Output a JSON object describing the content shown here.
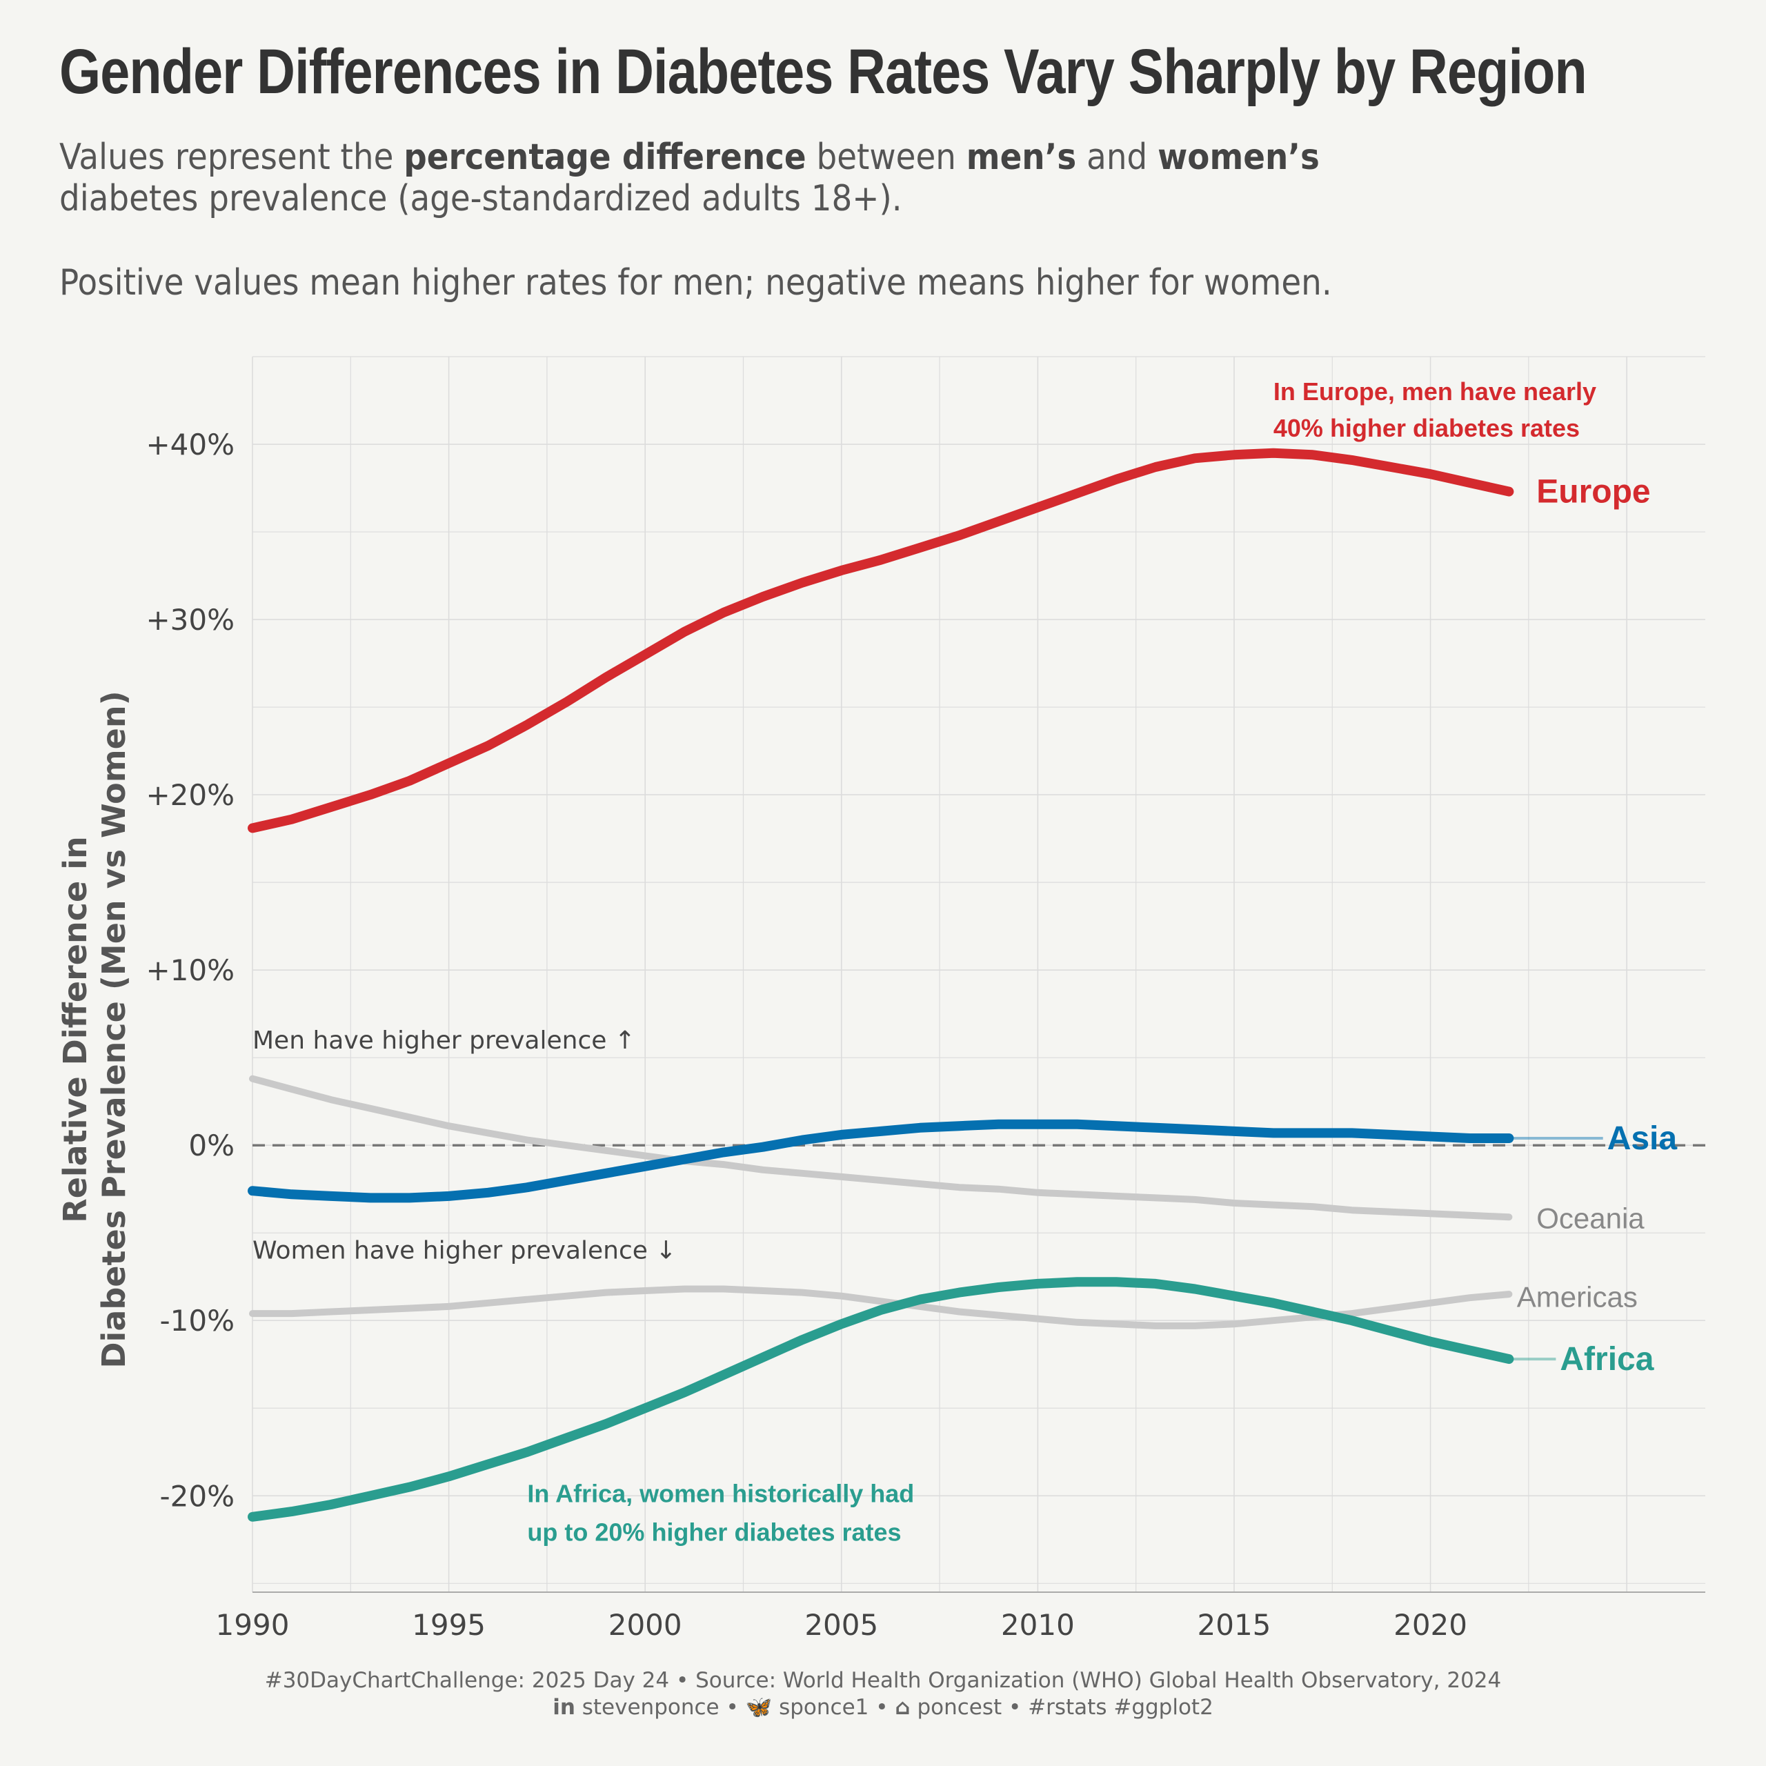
{
  "title": "Gender Differences in Diabetes Rates Vary Sharply by Region",
  "subtitle": {
    "line1_a": "Values represent the ",
    "line1_b": "percentage difference",
    "line1_c": " between ",
    "line1_d": "men’s",
    "line1_e": " and ",
    "line1_f": "women’s",
    "line2": "diabetes prevalence (age-standardized adults 18+).",
    "line3": "Positive values mean higher rates for men; negative means higher for women."
  },
  "caption": {
    "line1": "#30DayChartChallenge: 2025 Day 24 • Source: World Health Organization (WHO) Global Health Observatory, 2024",
    "linkedin": "stevenponce",
    "bluesky": "sponce1",
    "github": "poncest",
    "tags": "#rstats #ggplot2",
    "sep": " • "
  },
  "colors": {
    "background": "#f5f5f2",
    "europe": "#d42a2e",
    "asia": "#0570b0",
    "africa": "#2a9d8f",
    "other": "#c9c9c9",
    "grid": "#dcdcdc",
    "zero_line": "#777777"
  },
  "chart_data": {
    "type": "line",
    "xlim": [
      1990,
      2027
    ],
    "ylim": [
      -25.5,
      45
    ],
    "x_ticks": [
      1990,
      1995,
      2000,
      2005,
      2010,
      2015,
      2020
    ],
    "y_ticks": [
      -20,
      -10,
      0,
      10,
      20,
      30,
      40
    ],
    "y_tick_labels": [
      "-20%",
      "-10%",
      "0%",
      "+10%",
      "+20%",
      "+30%",
      "+40%"
    ],
    "ylabel_line1": "Relative Difference in",
    "ylabel_line2": "Diabetes Prevalence (Men vs Women)",
    "xlabel": "",
    "grid": true,
    "reference_line": 0,
    "series": [
      {
        "name": "Europe",
        "color_key": "europe",
        "highlight": true,
        "x": [
          1990,
          1991,
          1992,
          1993,
          1994,
          1995,
          1996,
          1997,
          1998,
          1999,
          2000,
          2001,
          2002,
          2003,
          2004,
          2005,
          2006,
          2007,
          2008,
          2009,
          2010,
          2011,
          2012,
          2013,
          2014,
          2015,
          2016,
          2017,
          2018,
          2019,
          2020,
          2021,
          2022
        ],
        "values": [
          18.1,
          18.6,
          19.3,
          20.0,
          20.8,
          21.8,
          22.8,
          24.0,
          25.3,
          26.7,
          28.0,
          29.3,
          30.4,
          31.3,
          32.1,
          32.8,
          33.4,
          34.1,
          34.8,
          35.6,
          36.4,
          37.2,
          38.0,
          38.7,
          39.2,
          39.4,
          39.5,
          39.4,
          39.1,
          38.7,
          38.3,
          37.8,
          37.3
        ]
      },
      {
        "name": "Asia",
        "color_key": "asia",
        "highlight": true,
        "x": [
          1990,
          1991,
          1992,
          1993,
          1994,
          1995,
          1996,
          1997,
          1998,
          1999,
          2000,
          2001,
          2002,
          2003,
          2004,
          2005,
          2006,
          2007,
          2008,
          2009,
          2010,
          2011,
          2012,
          2013,
          2014,
          2015,
          2016,
          2017,
          2018,
          2019,
          2020,
          2021,
          2022
        ],
        "values": [
          -2.6,
          -2.8,
          -2.9,
          -3.0,
          -3.0,
          -2.9,
          -2.7,
          -2.4,
          -2.0,
          -1.6,
          -1.2,
          -0.8,
          -0.4,
          -0.1,
          0.3,
          0.6,
          0.8,
          1.0,
          1.1,
          1.2,
          1.2,
          1.2,
          1.1,
          1.0,
          0.9,
          0.8,
          0.7,
          0.7,
          0.7,
          0.6,
          0.5,
          0.4,
          0.4
        ]
      },
      {
        "name": "Africa",
        "color_key": "africa",
        "highlight": true,
        "x": [
          1990,
          1991,
          1992,
          1993,
          1994,
          1995,
          1996,
          1997,
          1998,
          1999,
          2000,
          2001,
          2002,
          2003,
          2004,
          2005,
          2006,
          2007,
          2008,
          2009,
          2010,
          2011,
          2012,
          2013,
          2014,
          2015,
          2016,
          2017,
          2018,
          2019,
          2020,
          2021,
          2022
        ],
        "values": [
          -21.2,
          -20.9,
          -20.5,
          -20.0,
          -19.5,
          -18.9,
          -18.2,
          -17.5,
          -16.7,
          -15.9,
          -15.0,
          -14.1,
          -13.1,
          -12.1,
          -11.1,
          -10.2,
          -9.4,
          -8.8,
          -8.4,
          -8.1,
          -7.9,
          -7.8,
          -7.8,
          -7.9,
          -8.2,
          -8.6,
          -9.0,
          -9.5,
          -10.0,
          -10.6,
          -11.2,
          -11.7,
          -12.2
        ]
      },
      {
        "name": "Oceania",
        "color_key": "other",
        "highlight": false,
        "x": [
          1990,
          1991,
          1992,
          1993,
          1994,
          1995,
          1996,
          1997,
          1998,
          1999,
          2000,
          2001,
          2002,
          2003,
          2004,
          2005,
          2006,
          2007,
          2008,
          2009,
          2010,
          2011,
          2012,
          2013,
          2014,
          2015,
          2016,
          2017,
          2018,
          2019,
          2020,
          2021,
          2022
        ],
        "values": [
          3.8,
          3.2,
          2.6,
          2.1,
          1.6,
          1.1,
          0.7,
          0.3,
          0.0,
          -0.3,
          -0.6,
          -0.9,
          -1.1,
          -1.4,
          -1.6,
          -1.8,
          -2.0,
          -2.2,
          -2.4,
          -2.5,
          -2.7,
          -2.8,
          -2.9,
          -3.0,
          -3.1,
          -3.3,
          -3.4,
          -3.5,
          -3.7,
          -3.8,
          -3.9,
          -4.0,
          -4.1
        ]
      },
      {
        "name": "Americas",
        "color_key": "other",
        "highlight": false,
        "x": [
          1990,
          1991,
          1992,
          1993,
          1994,
          1995,
          1996,
          1997,
          1998,
          1999,
          2000,
          2001,
          2002,
          2003,
          2004,
          2005,
          2006,
          2007,
          2008,
          2009,
          2010,
          2011,
          2012,
          2013,
          2014,
          2015,
          2016,
          2017,
          2018,
          2019,
          2020,
          2021,
          2022
        ],
        "values": [
          -9.6,
          -9.6,
          -9.5,
          -9.4,
          -9.3,
          -9.2,
          -9.0,
          -8.8,
          -8.6,
          -8.4,
          -8.3,
          -8.2,
          -8.2,
          -8.3,
          -8.4,
          -8.6,
          -8.9,
          -9.2,
          -9.5,
          -9.7,
          -9.9,
          -10.1,
          -10.2,
          -10.3,
          -10.3,
          -10.2,
          -10.0,
          -9.8,
          -9.6,
          -9.3,
          -9.0,
          -8.7,
          -8.5
        ]
      }
    ],
    "annotations": [
      {
        "id": "europe_note_1",
        "text": "In Europe, men have nearly",
        "color_key": "europe",
        "bold": true,
        "x": 2016.0,
        "y": 43.0
      },
      {
        "id": "europe_note_2",
        "text": "40% higher diabetes rates",
        "color_key": "europe",
        "bold": true,
        "x": 2016.0,
        "y": 40.9
      },
      {
        "id": "africa_note_1",
        "text": "In Africa, women historically had",
        "color_key": "africa",
        "bold": true,
        "x": 1997.0,
        "y": -19.9
      },
      {
        "id": "africa_note_2",
        "text": "up to 20% higher diabetes rates",
        "color_key": "africa",
        "bold": true,
        "x": 1997.0,
        "y": -22.1
      },
      {
        "id": "men_higher",
        "text": "Men have higher prevalence ↑",
        "color_key": "axis",
        "bold": false,
        "x": 1990.0,
        "y": 6.0
      },
      {
        "id": "women_higher",
        "text": "Women have higher prevalence ↓",
        "color_key": "axis",
        "bold": false,
        "x": 1990.0,
        "y": -6.0
      }
    ],
    "end_labels": [
      {
        "series": "Europe",
        "text": "Europe",
        "x": 2022.7,
        "y": 37.3,
        "connector": false
      },
      {
        "series": "Asia",
        "text": "Asia",
        "x": 2024.5,
        "y": 0.4,
        "connector": true
      },
      {
        "series": "Oceania",
        "text": "Oceania",
        "x": 2022.7,
        "y": -4.1,
        "connector": false
      },
      {
        "series": "Americas",
        "text": "Americas",
        "x": 2022.2,
        "y": -8.6,
        "connector": false
      },
      {
        "series": "Africa",
        "text": "Africa",
        "x": 2023.3,
        "y": -12.2,
        "connector": true
      }
    ]
  }
}
